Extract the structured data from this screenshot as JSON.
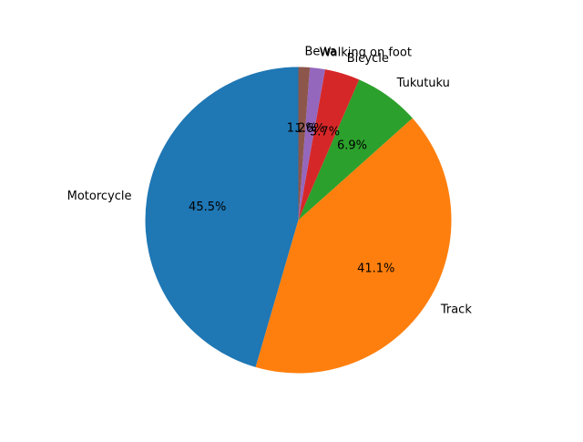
{
  "chart_data": {
    "type": "pie",
    "title": "",
    "start_angle_deg": 90,
    "direction": "counterclockwise",
    "label_position": "outside",
    "percent_label_position": "inside",
    "percent_format": "one-decimal",
    "categories": [
      "Motorcycle",
      "Track",
      "Tukutuku",
      "Bicycle",
      "Walking on foot",
      "Bewa"
    ],
    "values": [
      45.5,
      41.1,
      6.9,
      3.7,
      1.6,
      1.2
    ],
    "percent_labels": [
      "45.5%",
      "41.1%",
      "6.9%",
      "3.7%",
      "1.6%",
      "1.2%"
    ],
    "colors": [
      "#1f77b4",
      "#ff7f0e",
      "#2ca02c",
      "#d62728",
      "#9467bd",
      "#8c564b"
    ]
  }
}
